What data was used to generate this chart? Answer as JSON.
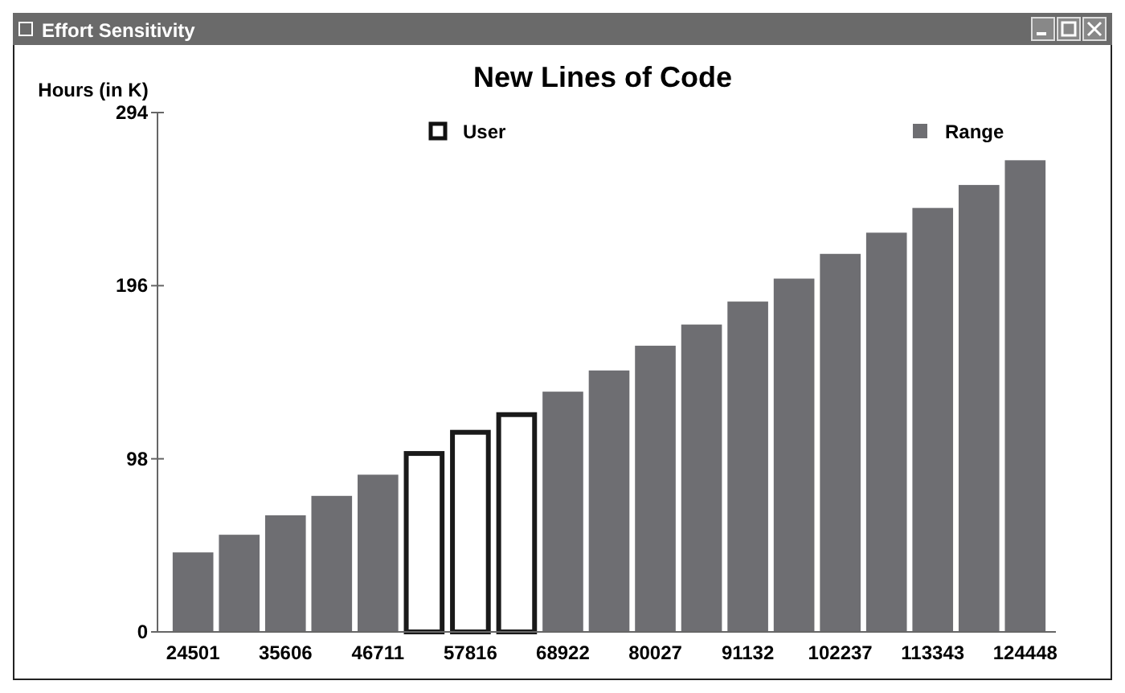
{
  "chart_data": {
    "type": "bar",
    "title": "New Lines of Code",
    "ylabel": "Hours (in K)",
    "annotations": [
      "Effort Sensitivity"
    ],
    "categories": [
      "24501",
      null,
      "35606",
      null,
      "46711",
      null,
      "57816",
      null,
      "68922",
      null,
      "80027",
      null,
      "91132",
      null,
      "102237",
      null,
      "113343",
      null,
      "124448"
    ],
    "series": [
      {
        "name": "User",
        "color": "#ffffff",
        "values": [
          null,
          null,
          null,
          null,
          null,
          101,
          113,
          123,
          null,
          null,
          null,
          null,
          null,
          null,
          null,
          null,
          null,
          null,
          null
        ]
      },
      {
        "name": "Range",
        "color": "#6e6e72",
        "values": [
          45,
          55,
          66,
          77,
          89,
          null,
          null,
          null,
          136,
          148,
          162,
          174,
          187,
          200,
          214,
          226,
          240,
          253,
          267
        ]
      }
    ],
    "ylim": [
      0,
      294
    ],
    "yticks": [
      0,
      98,
      196,
      294
    ],
    "grid": false,
    "legend": "top"
  }
}
